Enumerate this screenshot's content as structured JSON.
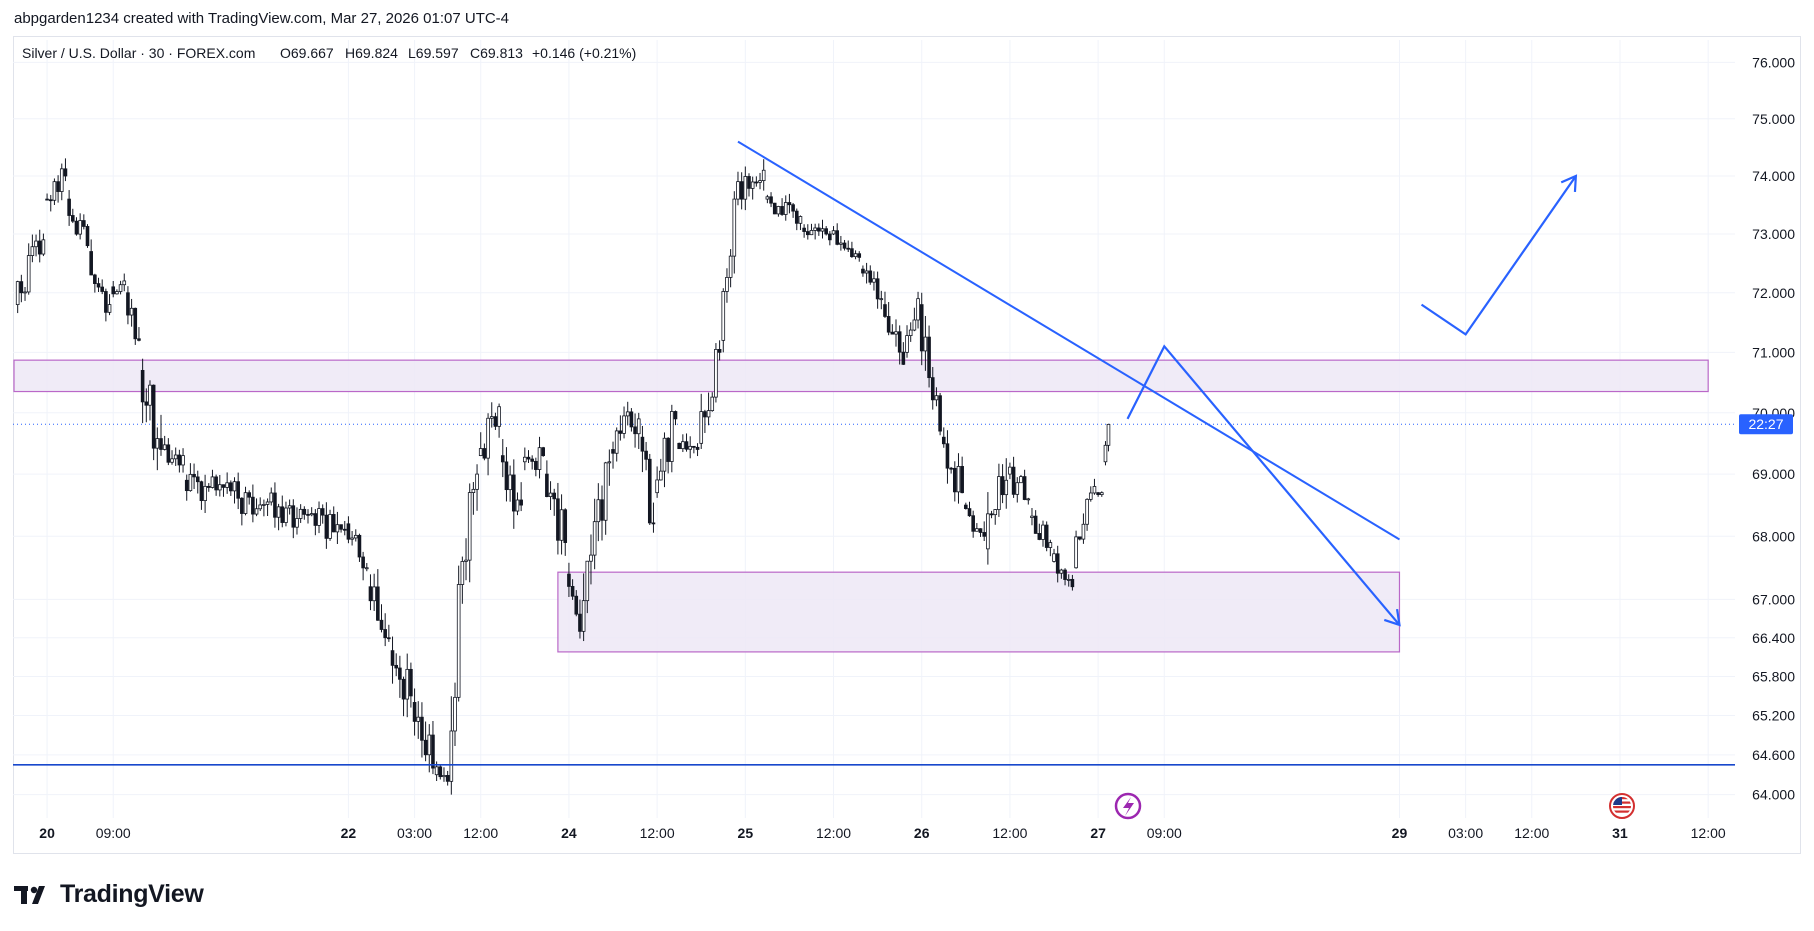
{
  "header": {
    "credit": "abpgarden1234 created with TradingView.com, Mar 27, 2026 01:07 UTC-4"
  },
  "brand": {
    "name": "TradingView"
  },
  "legend": {
    "symbol": "Silver / U.S. Dollar · 30 · FOREX.com",
    "open": "O69.667",
    "high": "H69.824",
    "low": "L69.597",
    "close": "C69.813",
    "change": "+0.146 (+0.21%)"
  },
  "price_label": {
    "time_remaining": "22:27",
    "value": 69.813
  },
  "colors": {
    "candle": "#131722",
    "zone_fill": "#ede7f6",
    "zone_stroke": "#ba68c8",
    "drawing": "#2962ff",
    "price_line": "#2962ff",
    "support_line": "#1848cc",
    "grid": "#f0f3fa",
    "event_icon": "#9c27b0"
  },
  "chart_data": {
    "type": "candlestick",
    "symbol": "Silver / U.S. Dollar",
    "interval": "30",
    "y_scale": "log",
    "ylim": [
      63.65,
      76.4
    ],
    "y_ticks": [
      "76.000",
      "75.000",
      "74.000",
      "73.000",
      "72.000",
      "71.000",
      "70.000",
      "69.000",
      "68.000",
      "67.000",
      "66.400",
      "65.800",
      "65.200",
      "64.600",
      "64.000"
    ],
    "x_ticks": [
      "20",
      "09:00",
      "22",
      "03:00",
      "12:00",
      "24",
      "12:00",
      "25",
      "12:00",
      "26",
      "12:00",
      "27",
      "09:00",
      "29",
      "03:00",
      "12:00",
      "31",
      "12:00"
    ],
    "x_tick_times": [
      "2026-03-20 00:00",
      "2026-03-20 09:00",
      "2026-03-22 18:00",
      "2026-03-23 03:00",
      "2026-03-23 12:00",
      "2026-03-24 00:00",
      "2026-03-24 12:00",
      "2026-03-25 00:00",
      "2026-03-25 12:00",
      "2026-03-26 00:00",
      "2026-03-26 12:00",
      "2026-03-27 00:00",
      "2026-03-27 09:00",
      "2026-03-29 18:00",
      "2026-03-30 03:00",
      "2026-03-30 12:00",
      "2026-03-31 00:00",
      "2026-03-31 12:00"
    ],
    "candles_approx": [
      {
        "time": "2026-03-19 20:00",
        "open": 71.8,
        "high": 73.2,
        "low": 71.5,
        "close": 72.9
      },
      {
        "time": "2026-03-20 00:00",
        "open": 73.6,
        "high": 74.5,
        "low": 73.2,
        "close": 74.0
      },
      {
        "time": "2026-03-20 03:00",
        "open": 73.6,
        "high": 73.9,
        "low": 72.4,
        "close": 72.8
      },
      {
        "time": "2026-03-20 06:00",
        "open": 72.7,
        "high": 73.1,
        "low": 71.4,
        "close": 71.8
      },
      {
        "time": "2026-03-20 09:00",
        "open": 72.1,
        "high": 72.5,
        "low": 71.6,
        "close": 72.2
      },
      {
        "time": "2026-03-20 11:00",
        "open": 72.0,
        "high": 72.3,
        "low": 70.9,
        "close": 71.2
      },
      {
        "time": "2026-03-20 13:00",
        "open": 70.7,
        "high": 71.0,
        "low": 68.4,
        "close": 69.4
      },
      {
        "time": "2026-03-20 16:00",
        "open": 69.4,
        "high": 69.8,
        "low": 68.8,
        "close": 69.3
      },
      {
        "time": "2026-03-20 19:00",
        "open": 68.9,
        "high": 69.2,
        "low": 67.8,
        "close": 68.1
      },
      {
        "time": "2026-03-22 18:00",
        "open": 68.2,
        "high": 68.5,
        "low": 67.0,
        "close": 67.5
      },
      {
        "time": "2026-03-22 21:00",
        "open": 67.2,
        "high": 67.7,
        "low": 65.8,
        "close": 66.4
      },
      {
        "time": "2026-03-23 00:00",
        "open": 66.2,
        "high": 66.7,
        "low": 64.7,
        "close": 65.5
      },
      {
        "time": "2026-03-23 03:00",
        "open": 65.4,
        "high": 65.8,
        "low": 63.8,
        "close": 64.4
      },
      {
        "time": "2026-03-23 06:00",
        "open": 64.3,
        "high": 64.9,
        "low": 63.7,
        "close": 64.2
      },
      {
        "time": "2026-03-23 08:00",
        "open": 64.2,
        "high": 68.0,
        "low": 64.0,
        "close": 67.6
      },
      {
        "time": "2026-03-23 10:00",
        "open": 67.6,
        "high": 69.8,
        "low": 67.2,
        "close": 69.0
      },
      {
        "time": "2026-03-23 12:00",
        "open": 69.3,
        "high": 70.8,
        "low": 68.9,
        "close": 70.1
      },
      {
        "time": "2026-03-23 15:00",
        "open": 69.3,
        "high": 70.0,
        "low": 67.8,
        "close": 68.5
      },
      {
        "time": "2026-03-23 18:00",
        "open": 69.2,
        "high": 69.9,
        "low": 68.7,
        "close": 69.3
      },
      {
        "time": "2026-03-23 21:00",
        "open": 69.0,
        "high": 69.6,
        "low": 67.6,
        "close": 67.9
      },
      {
        "time": "2026-03-24 00:00",
        "open": 67.4,
        "high": 67.7,
        "low": 66.1,
        "close": 66.5
      },
      {
        "time": "2026-03-24 02:00",
        "open": 66.5,
        "high": 69.4,
        "low": 66.3,
        "close": 69.2
      },
      {
        "time": "2026-03-24 06:00",
        "open": 69.4,
        "high": 70.4,
        "low": 68.6,
        "close": 69.9
      },
      {
        "time": "2026-03-24 10:00",
        "open": 69.6,
        "high": 70.3,
        "low": 67.8,
        "close": 68.2
      },
      {
        "time": "2026-03-24 12:00",
        "open": 68.7,
        "high": 70.3,
        "low": 68.4,
        "close": 69.9
      },
      {
        "time": "2026-03-24 15:00",
        "open": 69.5,
        "high": 69.9,
        "low": 68.8,
        "close": 69.4
      },
      {
        "time": "2026-03-24 18:00",
        "open": 69.5,
        "high": 71.3,
        "low": 69.3,
        "close": 71.0
      },
      {
        "time": "2026-03-24 21:00",
        "open": 71.2,
        "high": 73.9,
        "low": 71.0,
        "close": 73.6
      },
      {
        "time": "2026-03-24 23:00",
        "open": 73.6,
        "high": 74.6,
        "low": 73.2,
        "close": 74.1
      },
      {
        "time": "2026-03-25 03:00",
        "open": 73.6,
        "high": 73.9,
        "low": 72.9,
        "close": 73.3
      },
      {
        "time": "2026-03-25 08:00",
        "open": 73.1,
        "high": 73.4,
        "low": 72.3,
        "close": 72.9
      },
      {
        "time": "2026-03-25 12:00",
        "open": 73.0,
        "high": 73.3,
        "low": 72.4,
        "close": 72.6
      },
      {
        "time": "2026-03-25 16:00",
        "open": 72.4,
        "high": 72.8,
        "low": 71.6,
        "close": 71.9
      },
      {
        "time": "2026-03-25 19:00",
        "open": 71.8,
        "high": 72.1,
        "low": 70.4,
        "close": 70.8
      },
      {
        "time": "2026-03-25 22:00",
        "open": 71.0,
        "high": 72.2,
        "low": 70.7,
        "close": 71.9
      },
      {
        "time": "2026-03-26 00:00",
        "open": 71.8,
        "high": 72.0,
        "low": 69.4,
        "close": 69.7
      },
      {
        "time": "2026-03-26 03:00",
        "open": 69.6,
        "high": 70.0,
        "low": 68.3,
        "close": 68.7
      },
      {
        "time": "2026-03-26 06:00",
        "open": 68.5,
        "high": 68.8,
        "low": 67.6,
        "close": 68.0
      },
      {
        "time": "2026-03-26 09:00",
        "open": 67.8,
        "high": 69.4,
        "low": 66.9,
        "close": 68.9
      },
      {
        "time": "2026-03-26 12:00",
        "open": 69.0,
        "high": 69.7,
        "low": 68.3,
        "close": 68.6
      },
      {
        "time": "2026-03-26 15:00",
        "open": 68.3,
        "high": 68.7,
        "low": 67.5,
        "close": 67.9
      },
      {
        "time": "2026-03-26 18:00",
        "open": 67.6,
        "high": 68.0,
        "low": 66.8,
        "close": 67.2
      },
      {
        "time": "2026-03-26 21:00",
        "open": 67.5,
        "high": 69.0,
        "low": 67.4,
        "close": 68.8
      },
      {
        "time": "2026-03-27 00:00",
        "open": 68.7,
        "high": 69.1,
        "low": 68.3,
        "close": 68.7
      },
      {
        "time": "2026-03-27 01:00",
        "open": 69.2,
        "high": 69.82,
        "low": 69.1,
        "close": 69.81
      }
    ],
    "annotations": [
      {
        "type": "zone",
        "label": "",
        "y_range": [
          70.35,
          70.87
        ],
        "x_range": [
          "2026-03-19 19:30",
          "2026-03-31 12:00"
        ]
      },
      {
        "type": "zone",
        "label": "",
        "y_range": [
          66.18,
          67.43
        ],
        "x_range": [
          "2026-03-23 22:30",
          "2026-03-29 12:00"
        ]
      },
      {
        "type": "trendline",
        "from": [
          "2026-03-24 23:00",
          74.6
        ],
        "to": [
          "2026-03-29 18:00",
          67.95
        ]
      },
      {
        "type": "hline",
        "y": 64.45
      },
      {
        "type": "path",
        "points": [
          [
            "2026-03-27 04:00",
            69.9
          ],
          [
            "2026-03-27 09:00",
            71.1
          ],
          [
            "2026-03-29 15:00",
            66.6
          ]
        ],
        "arrow": true
      },
      {
        "type": "path",
        "points": [
          [
            "2026-03-29 21:00",
            71.8
          ],
          [
            "2026-03-30 03:00",
            71.3
          ],
          [
            "2026-03-30 18:00",
            74.0
          ]
        ],
        "arrow": true
      }
    ]
  }
}
